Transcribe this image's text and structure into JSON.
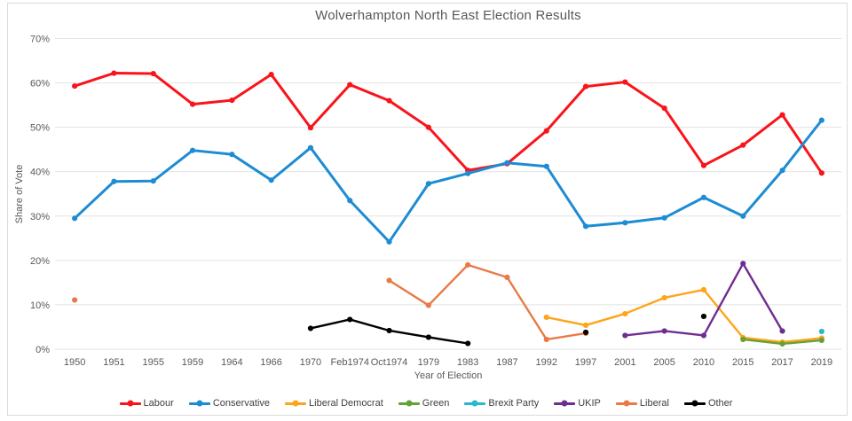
{
  "title": "Wolverhampton North East Election Results",
  "x_axis": {
    "label": "Year of Election"
  },
  "y_axis": {
    "label": "Share of Vote"
  },
  "colors": {
    "background": "#FFFFFF",
    "border": "#DBDBDB",
    "gridline": "#E2E2E2",
    "axis_text": "#595959",
    "title_text": "#595959",
    "legend_text": "#404040"
  },
  "chart_data": {
    "type": "line",
    "title": "Wolverhampton North East Election Results",
    "xlabel": "Year of Election",
    "ylabel": "Share of Vote",
    "ylim": [
      0,
      70
    ],
    "y_ticks": [
      0,
      10,
      20,
      30,
      40,
      50,
      60,
      70
    ],
    "y_tick_suffix": "%",
    "grid": true,
    "legend_position": "bottom",
    "categories": [
      "1950",
      "1951",
      "1955",
      "1959",
      "1964",
      "1966",
      "1970",
      "Feb1974",
      "Oct1974",
      "1979",
      "1983",
      "1987",
      "1992",
      "1997",
      "2001",
      "2005",
      "2010",
      "2015",
      "2017",
      "2019"
    ],
    "series": [
      {
        "name": "Labour",
        "color": "#F9141B",
        "values": [
          59.3,
          62.2,
          62.1,
          55.2,
          56.1,
          61.9,
          49.9,
          59.6,
          56.0,
          50.0,
          40.3,
          41.8,
          49.2,
          59.2,
          60.2,
          54.3,
          41.4,
          46.0,
          52.8,
          39.7
        ]
      },
      {
        "name": "Conservative",
        "color": "#1D8CD3",
        "values": [
          29.5,
          37.8,
          37.9,
          44.8,
          43.9,
          38.1,
          45.4,
          33.5,
          24.2,
          37.3,
          39.6,
          42.0,
          41.2,
          27.7,
          28.5,
          29.6,
          34.2,
          30.0,
          40.3,
          51.6
        ]
      },
      {
        "name": "Liberal Democrat",
        "color": "#FFA419",
        "values": [
          null,
          null,
          null,
          null,
          null,
          null,
          null,
          null,
          null,
          null,
          null,
          null,
          7.2,
          5.4,
          8.0,
          11.6,
          13.4,
          2.6,
          1.6,
          2.5
        ]
      },
      {
        "name": "Green",
        "color": "#64A237",
        "values": [
          null,
          null,
          null,
          null,
          null,
          null,
          null,
          null,
          null,
          null,
          null,
          null,
          null,
          null,
          null,
          null,
          null,
          2.2,
          1.2,
          2.0
        ]
      },
      {
        "name": "Brexit Party",
        "color": "#29B7CE",
        "values": [
          null,
          null,
          null,
          null,
          null,
          null,
          null,
          null,
          null,
          null,
          null,
          null,
          null,
          null,
          null,
          null,
          null,
          null,
          null,
          4.0
        ]
      },
      {
        "name": "UKIP",
        "color": "#6F2D91",
        "values": [
          null,
          null,
          null,
          null,
          null,
          null,
          null,
          null,
          null,
          null,
          null,
          null,
          null,
          null,
          3.1,
          4.1,
          3.1,
          19.3,
          4.1,
          null
        ]
      },
      {
        "name": "Liberal",
        "color": "#E97A48",
        "values": [
          11.1,
          null,
          null,
          null,
          null,
          null,
          null,
          null,
          15.5,
          9.9,
          19.0,
          16.2,
          2.2,
          3.6,
          null,
          null,
          null,
          null,
          null,
          null
        ]
      },
      {
        "name": "Other",
        "color": "#000000",
        "values": [
          null,
          null,
          null,
          null,
          null,
          null,
          4.7,
          6.7,
          4.2,
          2.7,
          1.3,
          null,
          null,
          3.8,
          null,
          null,
          7.4,
          null,
          null,
          null
        ]
      }
    ]
  }
}
